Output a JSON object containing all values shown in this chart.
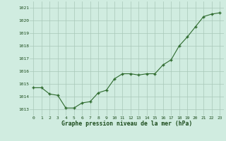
{
  "x": [
    0,
    1,
    2,
    3,
    4,
    5,
    6,
    7,
    8,
    9,
    10,
    11,
    12,
    13,
    14,
    15,
    16,
    17,
    18,
    19,
    20,
    21,
    22,
    23
  ],
  "y": [
    1014.7,
    1014.7,
    1014.2,
    1014.1,
    1013.1,
    1013.1,
    1013.5,
    1013.6,
    1014.3,
    1014.5,
    1015.4,
    1015.8,
    1015.8,
    1015.7,
    1015.8,
    1015.8,
    1016.5,
    1016.9,
    1018.0,
    1018.7,
    1019.5,
    1020.3,
    1020.5,
    1020.6
  ],
  "line_color": "#2d6a2d",
  "marker_color": "#2d6a2d",
  "bg_color": "#d0ece0",
  "grid_color": "#a8c8b8",
  "xlabel": "Graphe pression niveau de la mer (hPa)",
  "xlabel_color": "#1a4a1a",
  "tick_color": "#1a4a1a",
  "ylim_min": 1012.5,
  "ylim_max": 1021.5,
  "xlim_min": -0.5,
  "xlim_max": 23.5,
  "yticks": [
    1013,
    1014,
    1015,
    1016,
    1017,
    1018,
    1019,
    1020,
    1021
  ],
  "xticks": [
    0,
    1,
    2,
    3,
    4,
    5,
    6,
    7,
    8,
    9,
    10,
    11,
    12,
    13,
    14,
    15,
    16,
    17,
    18,
    19,
    20,
    21,
    22,
    23
  ]
}
